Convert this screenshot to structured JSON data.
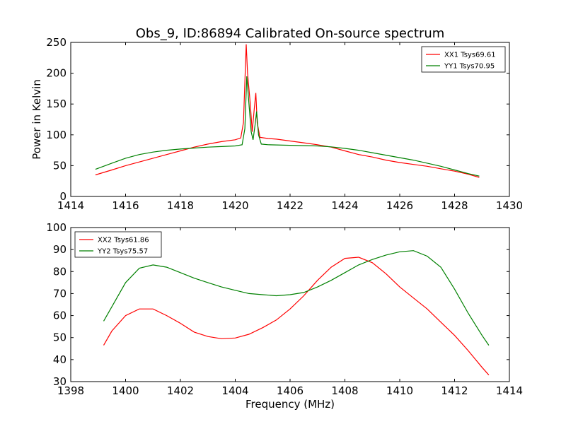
{
  "figure": {
    "title": "Obs_9, ID:86894 Calibrated On-source spectrum",
    "xlabel": "Frequency (MHz)"
  },
  "chart_data": [
    {
      "type": "line",
      "title": "Obs_9, ID:86894 Calibrated On-source spectrum",
      "xlabel": "",
      "ylabel": "Power in Kelvin",
      "xlim": [
        1414,
        1430
      ],
      "ylim": [
        0,
        250
      ],
      "xticks": [
        "1414",
        "1416",
        "1418",
        "1420",
        "1422",
        "1424",
        "1426",
        "1428",
        "1430"
      ],
      "yticks": [
        "0",
        "50",
        "100",
        "150",
        "200",
        "250"
      ],
      "grid": false,
      "legend": "top-right",
      "series": [
        {
          "name": "XX1 Tsys69.61",
          "color": "#ff0000",
          "x": [
            1414.9,
            1415.5,
            1416.0,
            1416.5,
            1417.0,
            1417.5,
            1418.0,
            1418.5,
            1419.0,
            1419.5,
            1420.0,
            1420.2,
            1420.3,
            1420.4,
            1420.45,
            1420.55,
            1420.62,
            1420.7,
            1420.75,
            1420.8,
            1420.9,
            1421.2,
            1421.5,
            1422.0,
            1422.5,
            1423.0,
            1423.5,
            1424.0,
            1424.5,
            1425.0,
            1425.5,
            1426.0,
            1426.5,
            1427.0,
            1427.5,
            1428.0,
            1428.5,
            1428.9
          ],
          "y": [
            35,
            43,
            50,
            56,
            62,
            68,
            74,
            80,
            85,
            89,
            92,
            95,
            120,
            247,
            200,
            150,
            105,
            145,
            168,
            120,
            96,
            94,
            93,
            90,
            87,
            84,
            80,
            74,
            68,
            64,
            59,
            55,
            52,
            49,
            45,
            41,
            36,
            31
          ]
        },
        {
          "name": "YY1 Tsys70.95",
          "color": "#008000",
          "x": [
            1414.9,
            1415.5,
            1416.0,
            1416.5,
            1417.0,
            1417.5,
            1418.0,
            1418.5,
            1419.0,
            1419.5,
            1420.0,
            1420.25,
            1420.35,
            1420.42,
            1420.5,
            1420.58,
            1420.65,
            1420.72,
            1420.78,
            1420.85,
            1420.95,
            1421.2,
            1422.0,
            1422.5,
            1423.0,
            1423.5,
            1424.0,
            1424.5,
            1425.0,
            1425.5,
            1426.0,
            1426.5,
            1427.0,
            1427.5,
            1428.0,
            1428.5,
            1428.9
          ],
          "y": [
            44,
            54,
            62,
            68,
            72,
            75,
            77,
            78.5,
            80,
            81,
            82,
            84,
            110,
            195,
            150,
            105,
            92,
            115,
            138,
            100,
            85,
            84,
            83,
            82.5,
            82,
            80.5,
            78,
            75,
            71,
            67,
            63,
            59,
            54,
            49,
            43,
            37,
            33
          ]
        }
      ]
    },
    {
      "type": "line",
      "title": "",
      "xlabel": "Frequency (MHz)",
      "ylabel": "",
      "xlim": [
        1398,
        1414
      ],
      "ylim": [
        30,
        100
      ],
      "xticks": [
        "1398",
        "1400",
        "1402",
        "1404",
        "1406",
        "1408",
        "1410",
        "1412",
        "1414"
      ],
      "yticks": [
        "30",
        "40",
        "50",
        "60",
        "70",
        "80",
        "90",
        "100"
      ],
      "grid": false,
      "legend": "top-left",
      "series": [
        {
          "name": "XX2 Tsys61.86",
          "color": "#ff0000",
          "x": [
            1399.2,
            1399.5,
            1400.0,
            1400.5,
            1401.0,
            1401.5,
            1402.0,
            1402.5,
            1403.0,
            1403.5,
            1404.0,
            1404.5,
            1405.0,
            1405.5,
            1406.0,
            1406.5,
            1407.0,
            1407.5,
            1408.0,
            1408.5,
            1409.0,
            1409.5,
            1410.0,
            1410.5,
            1411.0,
            1411.5,
            1412.0,
            1412.5,
            1413.0,
            1413.25
          ],
          "y": [
            46.5,
            53,
            60,
            63,
            63,
            60,
            56.5,
            52.5,
            50.5,
            49.5,
            49.8,
            51.5,
            54.5,
            58,
            63,
            69,
            76,
            82,
            86,
            86.5,
            84,
            79,
            73,
            68,
            63,
            57,
            51,
            44,
            36.5,
            33
          ]
        },
        {
          "name": "YY2 Tsys75.57",
          "color": "#008000",
          "x": [
            1399.2,
            1399.5,
            1400.0,
            1400.5,
            1401.0,
            1401.5,
            1402.0,
            1402.5,
            1403.0,
            1403.5,
            1404.0,
            1404.5,
            1405.0,
            1405.5,
            1406.0,
            1406.5,
            1407.0,
            1407.5,
            1408.0,
            1408.5,
            1409.0,
            1409.5,
            1410.0,
            1410.5,
            1411.0,
            1411.5,
            1412.0,
            1412.5,
            1413.0,
            1413.25
          ],
          "y": [
            57.5,
            64,
            75,
            81.5,
            83,
            82,
            79.5,
            77,
            75,
            73,
            71.5,
            70,
            69.5,
            69,
            69.5,
            70.5,
            73,
            76,
            79.5,
            83,
            85.5,
            87.5,
            89,
            89.5,
            87,
            82,
            72,
            61,
            51,
            46.5
          ]
        }
      ]
    }
  ]
}
